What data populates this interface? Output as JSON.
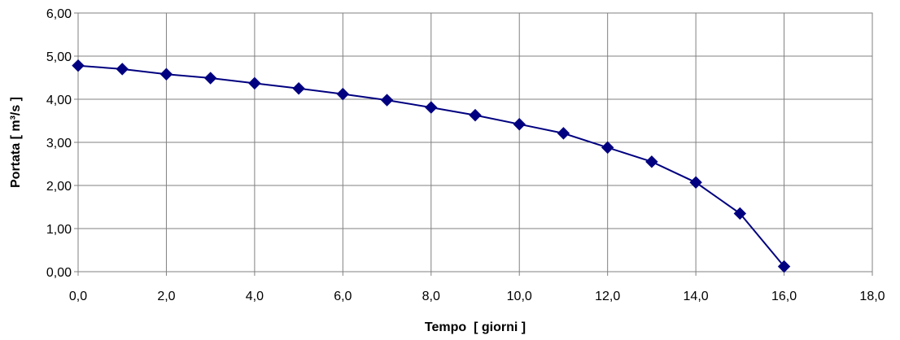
{
  "chart_data": {
    "type": "line",
    "title": "",
    "xlabel": "Tempo  [ giorni ]",
    "ylabel": "Portata [ m³/s ]",
    "xlim": [
      0,
      18
    ],
    "ylim": [
      0,
      6
    ],
    "x_ticks": [
      "0,0",
      "2,0",
      "4,0",
      "6,0",
      "8,0",
      "10,0",
      "12,0",
      "14,0",
      "16,0",
      "18,0"
    ],
    "y_ticks": [
      "0,00",
      "1,00",
      "2,00",
      "3,00",
      "4,00",
      "5,00",
      "6,00"
    ],
    "grid": true,
    "legend": "none",
    "series": [
      {
        "color": "#000080",
        "marker": "diamond",
        "x": [
          0,
          1,
          2,
          3,
          4,
          5,
          6,
          7,
          8,
          9,
          10,
          11,
          12,
          13,
          14,
          15,
          16
        ],
        "y": [
          4.78,
          4.7,
          4.58,
          4.49,
          4.37,
          4.25,
          4.12,
          3.98,
          3.81,
          3.63,
          3.42,
          3.21,
          2.88,
          2.55,
          2.07,
          1.35,
          0.12
        ]
      }
    ]
  }
}
